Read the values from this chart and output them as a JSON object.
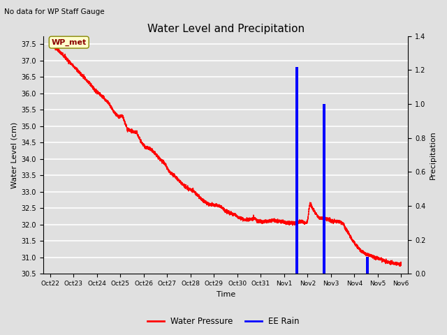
{
  "title": "Water Level and Precipitation",
  "subtitle": "No data for WP Staff Gauge",
  "xlabel": "Time",
  "ylabel_left": "Water Level (cm)",
  "ylabel_right": "Precipitation",
  "annotation_label": "WP_met",
  "legend_entries": [
    "Water Pressure",
    "EE Rain"
  ],
  "legend_colors": [
    "red",
    "blue"
  ],
  "ylim_left": [
    30.5,
    37.75
  ],
  "ylim_right": [
    0.0,
    1.4
  ],
  "yticks_left": [
    30.5,
    31.0,
    31.5,
    32.0,
    32.5,
    33.0,
    33.5,
    34.0,
    34.5,
    35.0,
    35.5,
    36.0,
    36.5,
    37.0,
    37.5
  ],
  "yticks_right": [
    0.0,
    0.2,
    0.4,
    0.6,
    0.8,
    1.0,
    1.2,
    1.4
  ],
  "bg_color": "#e0e0e0",
  "plot_bg_color": "#e0e0e0",
  "grid_color": "white",
  "water_pressure_color": "red",
  "rain_color": "blue",
  "rain_events": [
    {
      "x": 10.55,
      "height": 1.22
    },
    {
      "x": 11.7,
      "height": 1.0
    },
    {
      "x": 13.55,
      "height": 0.1
    }
  ],
  "rain_bar_width": 0.12,
  "x_tick_positions": [
    0,
    1,
    2,
    3,
    4,
    5,
    6,
    7,
    8,
    9,
    10,
    11,
    12,
    13,
    14,
    15
  ],
  "x_tick_labels": [
    "Oct 22",
    "Oct 23",
    "Oct 24",
    "Oct 25",
    "Oct 26",
    "Oct 27",
    "Oct 28",
    "Oct 29",
    "Oct 30",
    "Oct 31",
    "Nov 1",
    "Nov 2",
    "Nov 3",
    "Nov 4",
    "Nov 5",
    "Nov 6"
  ],
  "water_pressure_x": [
    0,
    0.3,
    0.5,
    0.7,
    0.9,
    1.1,
    1.3,
    1.5,
    1.7,
    1.9,
    2.1,
    2.3,
    2.5,
    2.7,
    2.9,
    3.1,
    3.3,
    3.5,
    3.7,
    3.9,
    4.1,
    4.3,
    4.5,
    4.7,
    4.9,
    5.1,
    5.3,
    5.5,
    5.7,
    5.9,
    6.1,
    6.3,
    6.5,
    6.7,
    6.9,
    7.1,
    7.3,
    7.5,
    7.7,
    7.9,
    8.1,
    8.3,
    8.5,
    8.7,
    8.9,
    9.1,
    9.3,
    9.5,
    9.7,
    9.9,
    10.1,
    10.3,
    10.5,
    10.55,
    10.7,
    10.9,
    11.0,
    11.1,
    11.3,
    11.5,
    11.7,
    11.9,
    12.1,
    12.3,
    12.5,
    12.7,
    12.9,
    13.1,
    13.3,
    13.5,
    13.7,
    13.9,
    14.1,
    14.3,
    14.5,
    14.7,
    14.9,
    15.0
  ],
  "water_pressure_y": [
    37.5,
    37.35,
    37.2,
    37.05,
    36.9,
    36.75,
    36.6,
    36.45,
    36.3,
    36.1,
    36.0,
    35.85,
    35.7,
    35.45,
    35.3,
    35.3,
    34.9,
    34.85,
    34.8,
    34.5,
    34.35,
    34.3,
    34.15,
    34.0,
    33.85,
    33.6,
    33.5,
    33.35,
    33.2,
    33.1,
    33.05,
    32.9,
    32.75,
    32.65,
    32.6,
    32.6,
    32.55,
    32.4,
    32.35,
    32.3,
    32.2,
    32.15,
    32.15,
    32.2,
    32.1,
    32.1,
    32.1,
    32.15,
    32.1,
    32.1,
    32.05,
    32.05,
    32.05,
    32.05,
    32.1,
    32.05,
    32.1,
    32.65,
    32.4,
    32.2,
    32.2,
    32.15,
    32.1,
    32.1,
    32.05,
    31.8,
    31.55,
    31.35,
    31.2,
    31.1,
    31.05,
    31.0,
    30.95,
    30.9,
    30.85,
    30.82,
    30.8,
    30.78
  ]
}
